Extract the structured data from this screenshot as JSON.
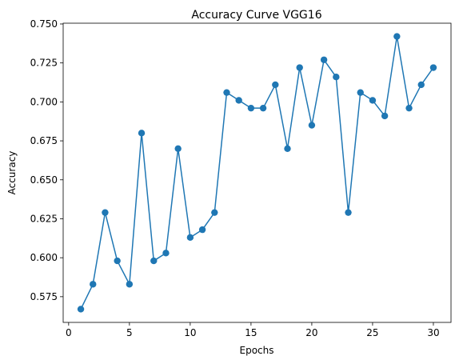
{
  "chart_data": {
    "type": "line",
    "title": "Accuracy Curve VGG16",
    "xlabel": "Epochs",
    "ylabel": "Accuracy",
    "xlim": [
      -0.45,
      31.45
    ],
    "ylim": [
      0.5585,
      0.7505
    ],
    "x_ticks": [
      0,
      5,
      10,
      15,
      20,
      25,
      30
    ],
    "y_ticks": [
      0.575,
      0.6,
      0.625,
      0.65,
      0.675,
      0.7,
      0.725,
      0.75
    ],
    "y_tick_labels": [
      "0.575",
      "0.600",
      "0.625",
      "0.650",
      "0.675",
      "0.700",
      "0.725",
      "0.750"
    ],
    "grid": false,
    "series": [
      {
        "color": "#1f77b4",
        "marker": "circle",
        "x": [
          1,
          2,
          3,
          4,
          5,
          6,
          7,
          8,
          9,
          10,
          11,
          12,
          13,
          14,
          15,
          16,
          17,
          18,
          19,
          20,
          21,
          22,
          23,
          24,
          25,
          26,
          27,
          28,
          29,
          30
        ],
        "values": [
          0.567,
          0.583,
          0.629,
          0.598,
          0.583,
          0.68,
          0.598,
          0.603,
          0.67,
          0.613,
          0.618,
          0.629,
          0.706,
          0.701,
          0.696,
          0.696,
          0.711,
          0.67,
          0.722,
          0.685,
          0.727,
          0.716,
          0.629,
          0.706,
          0.701,
          0.691,
          0.742,
          0.696,
          0.711,
          0.722
        ]
      }
    ]
  }
}
